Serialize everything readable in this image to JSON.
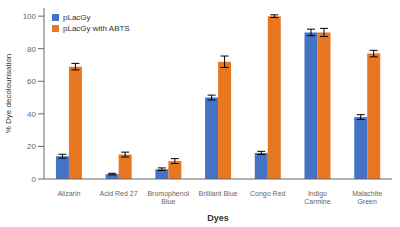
{
  "chart_data": {
    "type": "bar",
    "categories": [
      "Alizarin",
      "Acid Red 27",
      "Bromophenol\nBlue",
      "Brilliant Blue",
      "Congo Red",
      "Indigo\nCarmine",
      "Malachite\nGreen"
    ],
    "series": [
      {
        "name": "pLacGy",
        "color": "#4472C4",
        "values": [
          14,
          3,
          6,
          50,
          16,
          90,
          38
        ],
        "errors": [
          1.2,
          0.5,
          0.8,
          1.5,
          1.0,
          2.0,
          1.5
        ]
      },
      {
        "name": "pLacGy with ABTS",
        "color": "#E87722",
        "values": [
          69,
          15,
          11,
          72,
          100,
          90,
          77
        ],
        "errors": [
          2.0,
          1.5,
          1.5,
          3.5,
          0.8,
          2.5,
          2.0
        ]
      }
    ],
    "xlabel": "Dyes",
    "ylabel": "% Dye decolourisation",
    "ylim": [
      0,
      105
    ],
    "yticks": [
      0,
      20,
      40,
      60,
      80,
      100
    ],
    "legend": "upper left",
    "grid": false
  }
}
